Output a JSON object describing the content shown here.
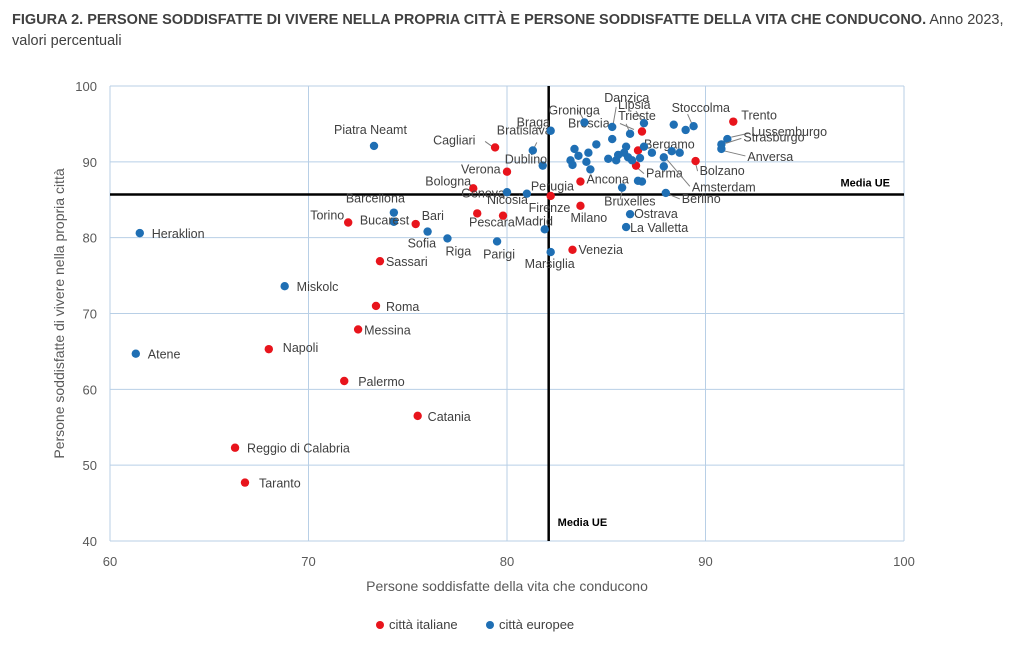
{
  "title": {
    "bold": "FIGURA 2. PERSONE SODDISFATTE DI VIVERE NELLA PROPRIA CITTÀ E PERSONE SODDISFATTE DELLA VITA CHE CONDUCONO.",
    "normal": "Anno 2023, valori percentuali"
  },
  "chart_data": {
    "type": "scatter",
    "title": "FIGURA 2. PERSONE SODDISFATTE DI VIVERE NELLA PROPRIA CITTÀ E PERSONE SODDISFATTE DELLA VITA CHE CONDUCONO. Anno 2023, valori percentuali",
    "xlabel": "Persone soddisfatte della vita che conducono",
    "ylabel": "Persone soddisfatte di vivere nella propria città",
    "xlim": [
      60,
      100
    ],
    "ylim": [
      40,
      100
    ],
    "xticks": [
      60,
      70,
      80,
      90,
      100
    ],
    "yticks": [
      40,
      50,
      60,
      70,
      80,
      90,
      100
    ],
    "grid": true,
    "colors": {
      "italian": "#e8141c",
      "european": "#1f6fb4",
      "reference": "#000000",
      "grid": "#b8cfe6"
    },
    "reference_lines": [
      {
        "axis": "y",
        "value": 85.7,
        "label": "Media UE"
      },
      {
        "axis": "x",
        "value": 82.1,
        "label": "Media UE"
      }
    ],
    "legend": {
      "position": "bottom",
      "entries": [
        "città italiane",
        "città europee"
      ]
    },
    "series": [
      {
        "name": "città italiane",
        "color": "#e8141c",
        "points": [
          {
            "label": "Trento",
            "x": 91.4,
            "y": 95.3
          },
          {
            "label": "Bolzano",
            "x": 89.5,
            "y": 90.1
          },
          {
            "label": "Bergamo",
            "x": 86.6,
            "y": 91.5
          },
          {
            "label": "Brescia",
            "x": 86.8,
            "y": 94.0
          },
          {
            "label": "Parma",
            "x": 86.5,
            "y": 89.5
          },
          {
            "label": "Cagliari",
            "x": 79.4,
            "y": 91.9
          },
          {
            "label": "Verona",
            "x": 80.0,
            "y": 88.7
          },
          {
            "label": "Bologna",
            "x": 78.3,
            "y": 86.5
          },
          {
            "label": "Ancona",
            "x": 83.7,
            "y": 87.4
          },
          {
            "label": "Firenze",
            "x": 82.2,
            "y": 85.5
          },
          {
            "label": "Milano",
            "x": 83.7,
            "y": 84.2
          },
          {
            "label": "Torino",
            "x": 72.0,
            "y": 82.0
          },
          {
            "label": "Bari",
            "x": 75.4,
            "y": 81.8
          },
          {
            "label": "Genova",
            "x": 78.5,
            "y": 83.2
          },
          {
            "label": "Pescara",
            "x": 79.8,
            "y": 82.9
          },
          {
            "label": "Venezia",
            "x": 83.3,
            "y": 78.4
          },
          {
            "label": "Sassari",
            "x": 73.6,
            "y": 76.9
          },
          {
            "label": "Roma",
            "x": 73.4,
            "y": 71.0
          },
          {
            "label": "Messina",
            "x": 72.5,
            "y": 67.9
          },
          {
            "label": "Napoli",
            "x": 68.0,
            "y": 65.3
          },
          {
            "label": "Palermo",
            "x": 71.8,
            "y": 61.1
          },
          {
            "label": "Catania",
            "x": 75.5,
            "y": 56.5
          },
          {
            "label": "Reggio di Calabria",
            "x": 66.3,
            "y": 52.3
          },
          {
            "label": "Taranto",
            "x": 66.8,
            "y": 47.7
          }
        ]
      },
      {
        "name": "città europee",
        "color": "#1f6fb4",
        "points": [
          {
            "label": "Piatra Neamt",
            "x": 73.3,
            "y": 92.1
          },
          {
            "label": "Heraklion",
            "x": 61.5,
            "y": 80.6
          },
          {
            "label": "Miskolc",
            "x": 68.8,
            "y": 73.6
          },
          {
            "label": "Atene",
            "x": 61.3,
            "y": 64.7
          },
          {
            "label": "Barcellona",
            "x": 74.3,
            "y": 83.3
          },
          {
            "label": "Bucarest",
            "x": 74.3,
            "y": 82.1
          },
          {
            "label": "Sofia",
            "x": 76.0,
            "y": 80.8
          },
          {
            "label": "Riga",
            "x": 77.0,
            "y": 79.9
          },
          {
            "label": "Parigi",
            "x": 79.5,
            "y": 79.5
          },
          {
            "label": "Madrid",
            "x": 81.9,
            "y": 81.1
          },
          {
            "label": "Marsiglia",
            "x": 82.2,
            "y": 78.1
          },
          {
            "label": "Nicosia",
            "x": 80.0,
            "y": 86.0
          },
          {
            "label": "Perugia",
            "x": 81.0,
            "y": 85.8
          },
          {
            "label": "Dublino",
            "x": 81.8,
            "y": 89.5
          },
          {
            "label": "Bratislava",
            "x": 81.3,
            "y": 91.5
          },
          {
            "label": "Braga",
            "x": 82.2,
            "y": 94.1
          },
          {
            "label": "Groninga",
            "x": 83.9,
            "y": 95.2
          },
          {
            "label": "Danzica",
            "x": 85.3,
            "y": 94.6
          },
          {
            "label": "Trieste",
            "x": 86.2,
            "y": 93.7
          },
          {
            "label": "Lipsia",
            "x": 86.9,
            "y": 95.1
          },
          {
            "label": "Stoccolma",
            "x": 89.4,
            "y": 94.7
          },
          {
            "label": "Lussemburgo",
            "x": 91.1,
            "y": 93.0
          },
          {
            "label": "Strasburgo",
            "x": 90.8,
            "y": 92.3
          },
          {
            "label": "Anversa",
            "x": 90.8,
            "y": 91.7
          },
          {
            "label": "Amsterdam",
            "x": 87.9,
            "y": 90.6
          },
          {
            "label": "Bruxelles",
            "x": 85.8,
            "y": 86.6
          },
          {
            "label": "Berlino",
            "x": 88.0,
            "y": 85.9
          },
          {
            "label": "Ostrava",
            "x": 86.2,
            "y": 83.1
          },
          {
            "label": "La Valletta",
            "x": 86.0,
            "y": 81.4
          },
          {
            "label": "",
            "x": 88.4,
            "y": 94.9
          },
          {
            "label": "",
            "x": 89.0,
            "y": 94.2
          },
          {
            "label": "",
            "x": 88.3,
            "y": 91.4
          },
          {
            "label": "",
            "x": 88.7,
            "y": 91.2
          },
          {
            "label": "",
            "x": 87.3,
            "y": 91.2
          },
          {
            "label": "",
            "x": 86.0,
            "y": 92.0
          },
          {
            "label": "",
            "x": 86.9,
            "y": 92.0
          },
          {
            "label": "",
            "x": 84.5,
            "y": 92.3
          },
          {
            "label": "",
            "x": 84.1,
            "y": 91.2
          },
          {
            "label": "",
            "x": 83.6,
            "y": 90.8
          },
          {
            "label": "",
            "x": 83.4,
            "y": 91.7
          },
          {
            "label": "",
            "x": 83.2,
            "y": 90.2
          },
          {
            "label": "",
            "x": 83.3,
            "y": 89.6
          },
          {
            "label": "",
            "x": 84.0,
            "y": 90.0
          },
          {
            "label": "",
            "x": 84.2,
            "y": 89.0
          },
          {
            "label": "",
            "x": 85.1,
            "y": 90.4
          },
          {
            "label": "",
            "x": 85.5,
            "y": 90.2
          },
          {
            "label": "",
            "x": 85.6,
            "y": 90.9
          },
          {
            "label": "",
            "x": 85.9,
            "y": 91.2
          },
          {
            "label": "",
            "x": 86.1,
            "y": 90.6
          },
          {
            "label": "",
            "x": 86.3,
            "y": 90.2
          },
          {
            "label": "",
            "x": 86.7,
            "y": 90.5
          },
          {
            "label": "",
            "x": 86.8,
            "y": 87.4
          },
          {
            "label": "",
            "x": 86.6,
            "y": 87.5
          },
          {
            "label": "",
            "x": 87.9,
            "y": 89.4
          },
          {
            "label": "",
            "x": 85.3,
            "y": 93.0
          }
        ]
      }
    ]
  }
}
